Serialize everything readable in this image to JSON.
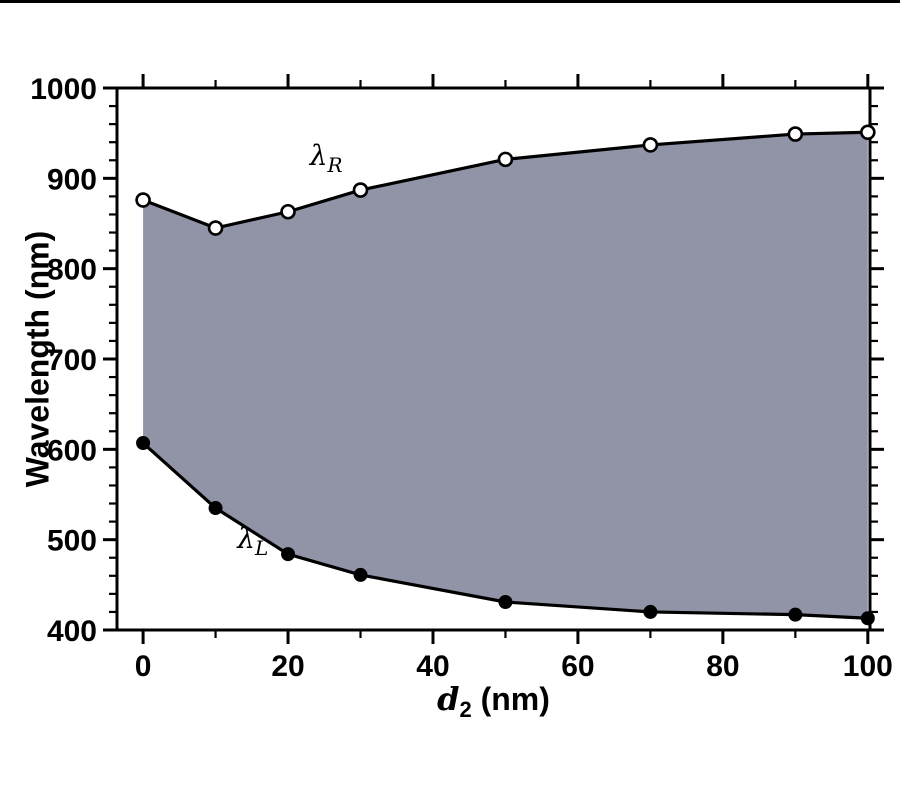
{
  "figure": {
    "background": "#ffffff",
    "frame_color": "#000000"
  },
  "chart_data": {
    "type": "area",
    "title": "",
    "xlabel": "d₂ (nm)",
    "xlabel_parts": {
      "main": "d",
      "sub": "2",
      "rest": " (nm)"
    },
    "ylabel": "Wavelength (nm)",
    "x": [
      0,
      10,
      20,
      30,
      50,
      70,
      90,
      100
    ],
    "series": [
      {
        "name": "lambda_R",
        "marker": "open-circle",
        "values": [
          876,
          845,
          863,
          887,
          921,
          937,
          949,
          951
        ]
      },
      {
        "name": "lambda_L",
        "marker": "filled-circle",
        "values": [
          607,
          535,
          484,
          461,
          431,
          420,
          417,
          413
        ]
      }
    ],
    "fill_between": true,
    "fill_color": "#9194a7",
    "line_color": "#000000",
    "xlim": [
      0,
      100
    ],
    "ylim": [
      400,
      1000
    ],
    "x_major_ticks": [
      0,
      20,
      40,
      60,
      80,
      100
    ],
    "x_minor_step": 10,
    "y_major_ticks": [
      400,
      500,
      600,
      700,
      800,
      900,
      1000
    ],
    "y_minor_step": 20,
    "grid": false,
    "legend": "none",
    "annotations": [
      {
        "text": "λ",
        "sub": "R",
        "x": 23,
        "y": 915
      },
      {
        "text": "λ",
        "sub": "L",
        "x": 13,
        "y": 491
      }
    ]
  }
}
